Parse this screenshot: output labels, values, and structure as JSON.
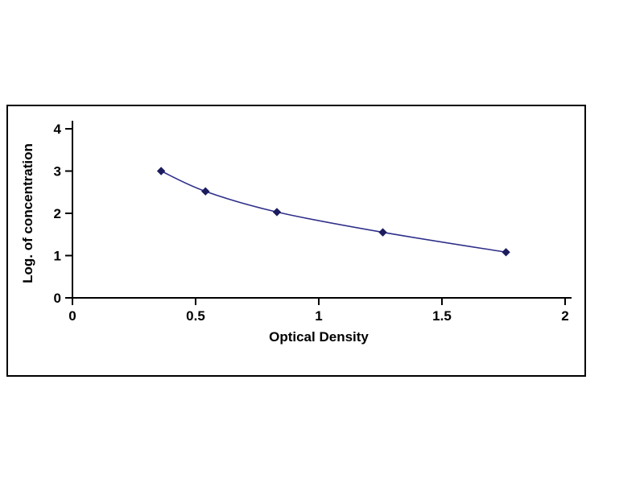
{
  "chart_data": {
    "type": "line",
    "title": "",
    "xlabel": "Optical Density",
    "ylabel": "Log. of concentration",
    "x": [
      0.36,
      0.54,
      0.83,
      1.26,
      1.76
    ],
    "y": [
      3.0,
      2.52,
      2.03,
      1.55,
      1.08
    ],
    "xlim": [
      0,
      2
    ],
    "ylim": [
      0,
      4
    ],
    "xticks": [
      0,
      0.5,
      1,
      1.5,
      2
    ],
    "yticks": [
      0,
      1,
      2,
      3,
      4
    ],
    "xtick_labels": [
      "0",
      "0.5",
      "1",
      "1.5",
      "2"
    ],
    "ytick_labels": [
      "0",
      "1",
      "2",
      "3",
      "4"
    ],
    "grid": false,
    "legend": null,
    "line_color": "#2e2e8a",
    "marker": "diamond",
    "marker_color": "#1c1c5e",
    "axis_color": "#000000",
    "background_color": "#ffffff"
  }
}
